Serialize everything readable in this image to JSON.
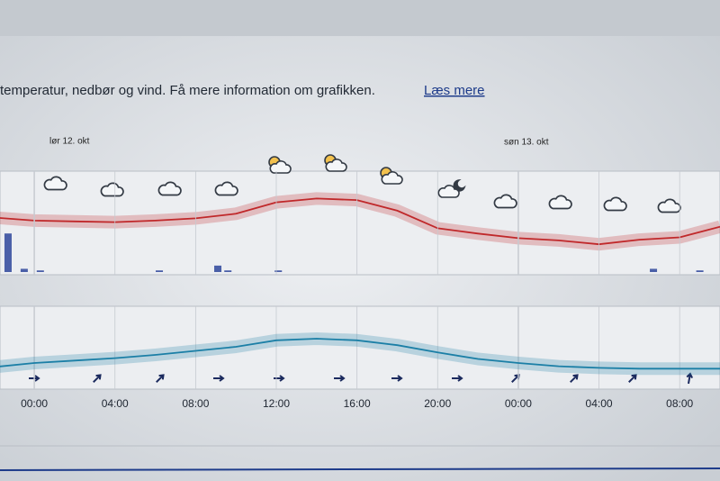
{
  "intro": {
    "text": "temperatur, nedbør og vind. Få mere information om grafikken.",
    "link": "Læs mere"
  },
  "dates": [
    "lør 12. okt",
    "søn 13. okt"
  ],
  "chart_data": [
    {
      "type": "line",
      "color": "#c0282a",
      "xlim": [
        -1.7,
        34
      ],
      "ylim": [
        5,
        18
      ],
      "x": [
        -2,
        0,
        2,
        4,
        6,
        8,
        10,
        12,
        14,
        16,
        18,
        20,
        22,
        24,
        26,
        28,
        30,
        32,
        34
      ],
      "values": [
        12.5,
        12.1,
        12.0,
        11.9,
        12.1,
        12.4,
        13.0,
        14.5,
        15.0,
        14.8,
        13.4,
        11.1,
        10.4,
        9.8,
        9.5,
        9.0,
        9.6,
        9.9,
        11.3
      ]
    },
    {
      "type": "bar",
      "color": "#4a5fa8",
      "xlim": [
        -1.7,
        34
      ],
      "ylim": [
        0,
        3
      ],
      "x": [
        -1.3,
        -0.5,
        0.3,
        6.2,
        9.1,
        9.6,
        12.1,
        30.7,
        33.0
      ],
      "values": [
        1.2,
        0.1,
        0.05,
        0.05,
        0.2,
        0.05,
        0.05,
        0.1,
        0.05
      ]
    },
    {
      "type": "line",
      "color": "#1b7fa6",
      "xlim": [
        -1.7,
        34
      ],
      "ylim": [
        0,
        10
      ],
      "x": [
        -2,
        0,
        2,
        4,
        6,
        8,
        10,
        12,
        14,
        16,
        18,
        20,
        22,
        24,
        26,
        28,
        30,
        32,
        34
      ],
      "values": [
        2.5,
        3,
        3.3,
        3.6,
        4,
        4.5,
        5,
        5.8,
        6,
        5.8,
        5.2,
        4.3,
        3.5,
        3,
        2.6,
        2.4,
        2.3,
        2.3,
        2.3
      ],
      "xticks": [
        {
          "value": 0,
          "label": "00:00"
        },
        {
          "value": 4,
          "label": "04:00"
        },
        {
          "value": 8,
          "label": "08:00"
        },
        {
          "value": 12,
          "label": "12:00"
        },
        {
          "value": 16,
          "label": "16:00"
        },
        {
          "value": 20,
          "label": "20:00"
        },
        {
          "value": 24,
          "label": "00:00"
        },
        {
          "value": 28,
          "label": "04:00"
        },
        {
          "value": 32,
          "label": "08:00"
        }
      ]
    }
  ]
}
